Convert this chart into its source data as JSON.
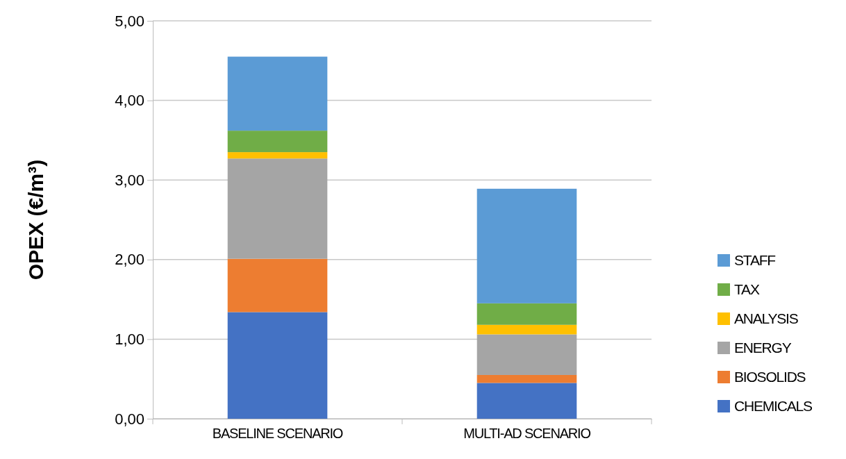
{
  "chart_data": {
    "type": "bar",
    "stacked": true,
    "ylabel": "OPEX (€/m³)",
    "categories": [
      "BASELINE SCENARIO",
      "MULTI-AD SCENARIO"
    ],
    "series": [
      {
        "name": "CHEMICALS",
        "color": "#4472c4",
        "values": [
          1.34,
          0.45
        ]
      },
      {
        "name": "BIOSOLIDS",
        "color": "#ed7d31",
        "values": [
          0.67,
          0.1
        ]
      },
      {
        "name": "ENERGY",
        "color": "#a5a5a5",
        "values": [
          1.26,
          0.51
        ]
      },
      {
        "name": "ANALYSIS",
        "color": "#ffc000",
        "values": [
          0.08,
          0.12
        ]
      },
      {
        "name": "TAX",
        "color": "#70ad47",
        "values": [
          0.27,
          0.27
        ]
      },
      {
        "name": "STAFF",
        "color": "#5b9bd5",
        "values": [
          0.93,
          1.44
        ]
      }
    ],
    "ylim": [
      0,
      5
    ],
    "yticks": [
      {
        "value": 0,
        "label": "0,00"
      },
      {
        "value": 1,
        "label": "1,00"
      },
      {
        "value": 2,
        "label": "2,00"
      },
      {
        "value": 3,
        "label": "3,00"
      },
      {
        "value": 4,
        "label": "4,00"
      },
      {
        "value": 5,
        "label": "5,00"
      }
    ],
    "grid": "y",
    "legend": "right"
  }
}
